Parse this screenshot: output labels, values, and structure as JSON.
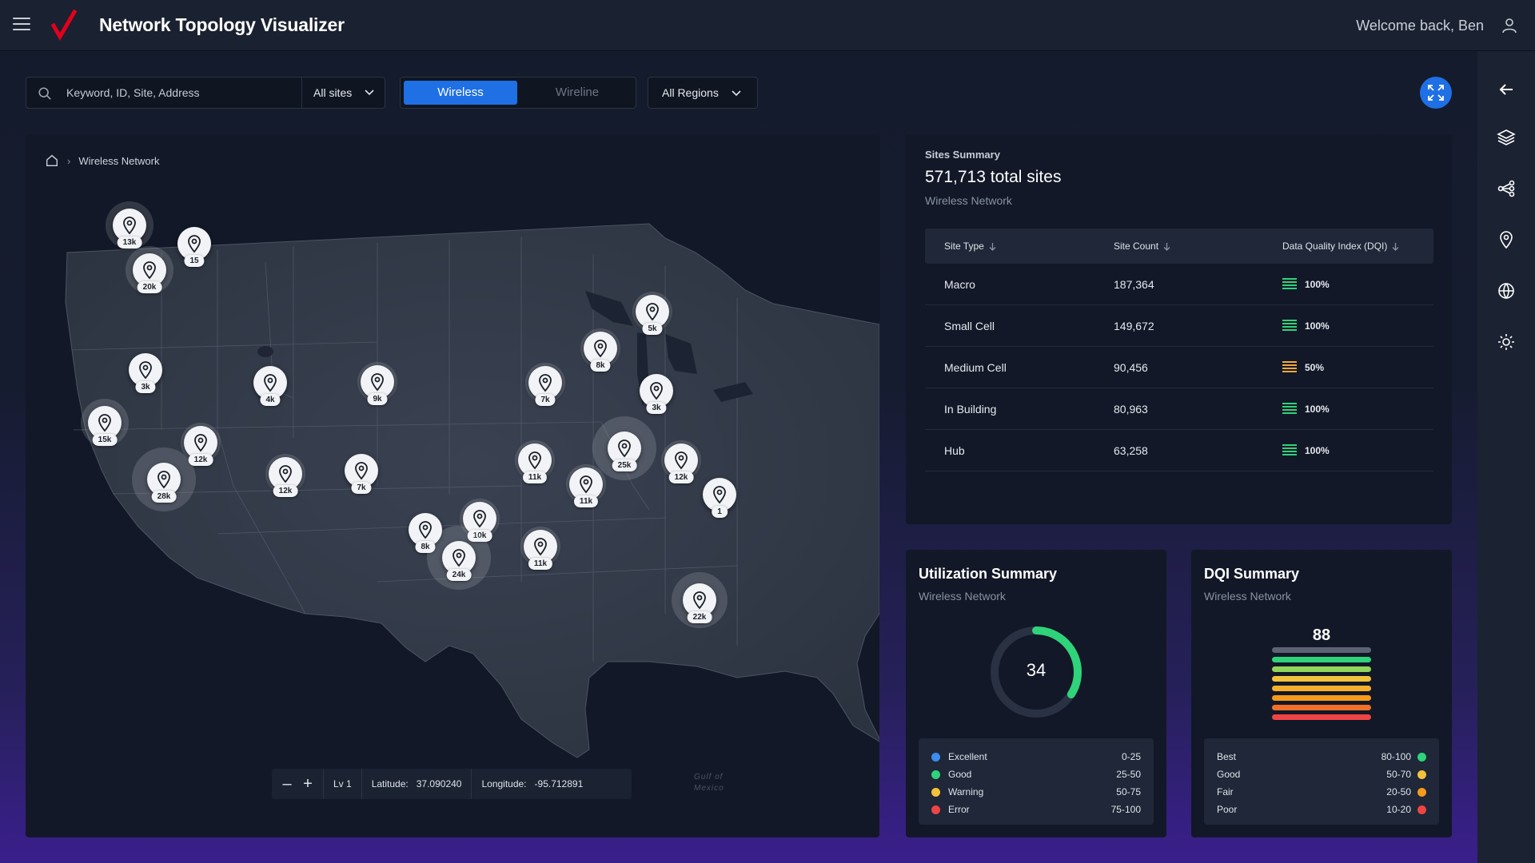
{
  "app": {
    "title": "Network Topology Visualizer",
    "welcome": "Welcome back, Ben",
    "brand_color": "#e3001b",
    "accent_color": "#1f6fe5"
  },
  "toolbar": {
    "search_placeholder": "Keyword, ID, Site, Address",
    "sites_filter": "All sites",
    "network_toggle": {
      "active": "Wireless",
      "inactive": "Wireline"
    },
    "regions_filter": "All Regions"
  },
  "right_rail": [
    "back-arrow-icon",
    "layers-icon",
    "topology-icon",
    "location-pin-icon",
    "globe-icon",
    "brightness-icon"
  ],
  "map": {
    "breadcrumb": "Wireless Network",
    "markers": [
      {
        "label": "13k"
      },
      {
        "label": "15"
      },
      {
        "label": "20k"
      },
      {
        "label": "3k"
      },
      {
        "label": "15k"
      },
      {
        "label": "12k"
      },
      {
        "label": "28k"
      },
      {
        "label": "4k"
      },
      {
        "label": "12k"
      },
      {
        "label": "9k"
      },
      {
        "label": "7k"
      },
      {
        "label": "7k"
      },
      {
        "label": "8k"
      },
      {
        "label": "5k"
      },
      {
        "label": "3k"
      },
      {
        "label": "11k"
      },
      {
        "label": "25k"
      },
      {
        "label": "12k"
      },
      {
        "label": "11k"
      },
      {
        "label": "10k"
      },
      {
        "label": "8k"
      },
      {
        "label": "24k"
      },
      {
        "label": "11k"
      },
      {
        "label": "22k"
      },
      {
        "label": "1"
      }
    ],
    "controls": {
      "level": "Lv 1",
      "latitude_label": "Latitude:",
      "latitude": "37.090240",
      "longitude_label": "Longitude:",
      "longitude": "-95.712891"
    },
    "water_label_line1": "Gulf of",
    "water_label_line2": "Mexico"
  },
  "sites_summary": {
    "kicker": "Sites Summary",
    "total": "571,713 total sites",
    "subtitle": "Wireless Network",
    "columns": [
      "Site Type",
      "Site Count",
      "Data Quality Index (DQI)"
    ],
    "rows": [
      {
        "type": "Macro",
        "count": "187,364",
        "dqi": "100%",
        "dqi_color": "#2fd37a"
      },
      {
        "type": "Small Cell",
        "count": "149,672",
        "dqi": "100%",
        "dqi_color": "#2fd37a"
      },
      {
        "type": "Medium Cell",
        "count": "90,456",
        "dqi": "50%",
        "dqi_color": "#f2a93b"
      },
      {
        "type": "In Building",
        "count": "80,963",
        "dqi": "100%",
        "dqi_color": "#2fd37a"
      },
      {
        "type": "Hub",
        "count": "63,258",
        "dqi": "100%",
        "dqi_color": "#2fd37a"
      }
    ]
  },
  "utilization": {
    "title": "Utilization Summary",
    "subtitle": "Wireless Network",
    "value": "34",
    "fraction": 0.34,
    "legend": [
      {
        "label": "Excellent",
        "range": "0-25",
        "color": "#3b8df0"
      },
      {
        "label": "Good",
        "range": "25-50",
        "color": "#2fd37a"
      },
      {
        "label": "Warning",
        "range": "50-75",
        "color": "#f2c23b"
      },
      {
        "label": "Error",
        "range": "75-100",
        "color": "#ef4444"
      }
    ]
  },
  "dqi_summary": {
    "title": "DQI Summary",
    "subtitle": "Wireless Network",
    "score": "88",
    "legend": [
      {
        "label": "Best",
        "range": "80-100",
        "color": "#2fd37a"
      },
      {
        "label": "Good",
        "range": "50-70",
        "color": "#f2c23b"
      },
      {
        "label": "Fair",
        "range": "20-50",
        "color": "#f59a1b"
      },
      {
        "label": "Poor",
        "range": "10-20",
        "color": "#ef4444"
      }
    ]
  }
}
